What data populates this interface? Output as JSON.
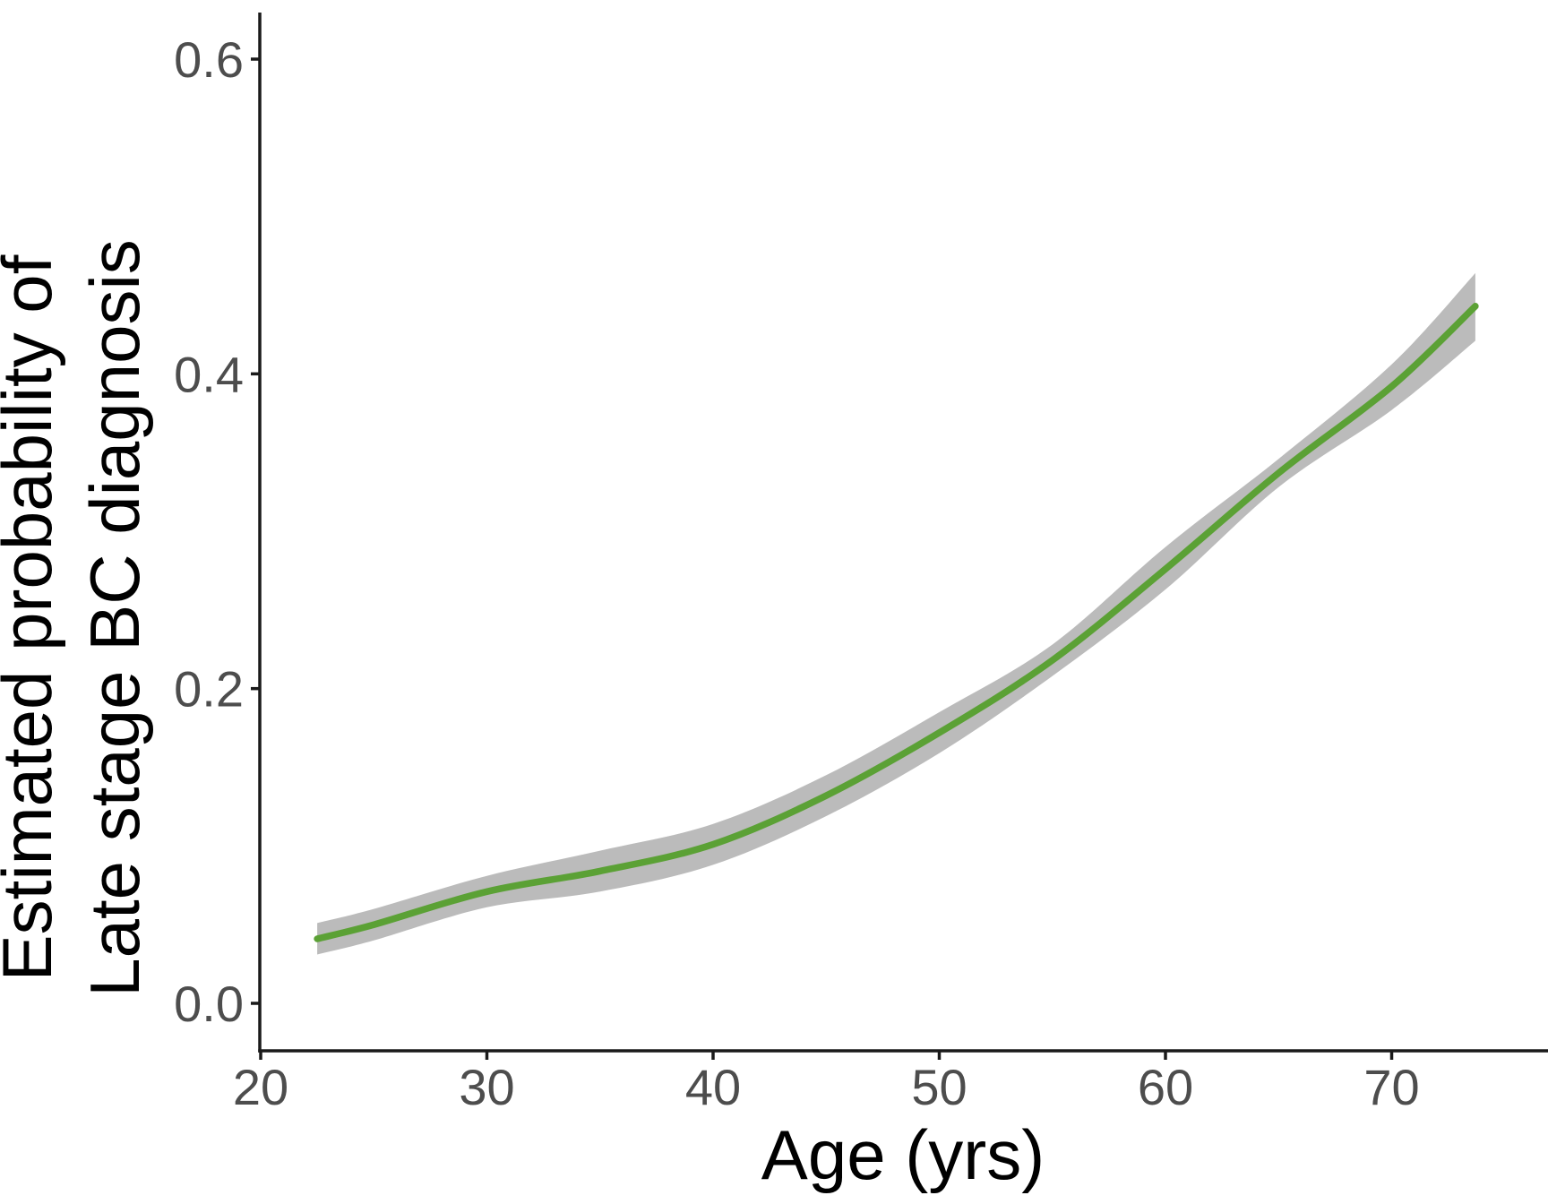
{
  "chart_data": {
    "type": "line",
    "title": "",
    "xlabel": "Age (yrs)",
    "ylabel": "Estimated probability of Late stage BC diagnosis",
    "ylabel_line1": "Estimated probability of",
    "ylabel_line2": "Late stage BC diagnosis",
    "x_axis": {
      "ticks": [
        20,
        30,
        40,
        50,
        60,
        70
      ],
      "tick_labels": [
        "20",
        "30",
        "40",
        "50",
        "60",
        "70"
      ],
      "range": [
        20,
        76.9
      ]
    },
    "y_axis": {
      "ticks": [
        0.0,
        0.2,
        0.4,
        0.6
      ],
      "tick_labels": [
        "0.0",
        "0.2",
        "0.4",
        "0.6"
      ],
      "range": [
        -0.03,
        0.632
      ]
    },
    "grid": "off",
    "legend": "none",
    "x": [
      22.5,
      25,
      30,
      35,
      40,
      45,
      50,
      55,
      60,
      65,
      70,
      73.7
    ],
    "series": [
      {
        "name": "estimated_probability",
        "role": "fit-line",
        "color": "#5BA135",
        "values": [
          0.041,
          0.05,
          0.071,
          0.084,
          0.101,
          0.132,
          0.172,
          0.218,
          0.276,
          0.337,
          0.392,
          0.443
        ]
      },
      {
        "name": "ci_lower",
        "role": "ribbon-lower-bound",
        "color": "#BBBBBB",
        "values": [
          0.031,
          0.04,
          0.061,
          0.071,
          0.088,
          0.119,
          0.159,
          0.208,
          0.263,
          0.328,
          0.377,
          0.421
        ]
      },
      {
        "name": "ci_upper",
        "role": "ribbon-upper-bound",
        "color": "#BBBBBB",
        "values": [
          0.051,
          0.06,
          0.081,
          0.097,
          0.114,
          0.145,
          0.185,
          0.228,
          0.29,
          0.346,
          0.406,
          0.464
        ]
      }
    ],
    "colors": {
      "line": "#5BA135",
      "band": "#BBBBBB",
      "axis": "#1A1A1A",
      "tick_text": "#4D4D4D",
      "title_text": "#000000",
      "background": "#FFFFFF"
    }
  }
}
